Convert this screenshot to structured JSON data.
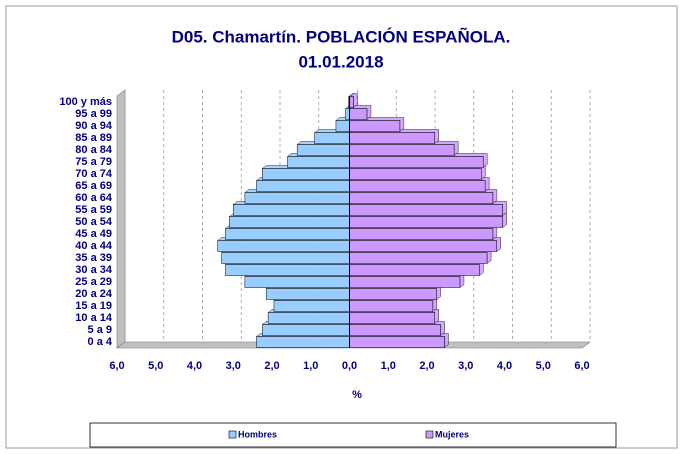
{
  "chart_data": {
    "type": "pyramid",
    "title": "D05. Chamartín. POBLACIÓN ESPAÑOLA.",
    "subtitle": "01.01.2018",
    "x_label": "%",
    "categories": [
      "0 a 4",
      "5 a 9",
      "10 a 14",
      "15 a 19",
      "20 a 24",
      "25 a 29",
      "30 a 34",
      "35 a 39",
      "40 a 44",
      "45 a 49",
      "50 a 54",
      "55 a 59",
      "60 a 64",
      "65 a 69",
      "70 a 74",
      "75 a 79",
      "80 a 84",
      "85 a 89",
      "90 a 94",
      "95 a 99",
      "100 y más"
    ],
    "series": [
      {
        "name": "Hombres",
        "color": "#99ccff",
        "side": "left",
        "values": [
          2.4,
          2.25,
          2.1,
          1.95,
          2.15,
          2.7,
          3.2,
          3.3,
          3.4,
          3.2,
          3.1,
          3.0,
          2.7,
          2.4,
          2.25,
          1.6,
          1.35,
          0.9,
          0.35,
          0.1,
          0.02
        ]
      },
      {
        "name": "Mujeres",
        "color": "#cc99ff",
        "side": "right",
        "values": [
          2.45,
          2.35,
          2.2,
          2.15,
          2.25,
          2.85,
          3.35,
          3.55,
          3.8,
          3.7,
          3.95,
          3.95,
          3.7,
          3.5,
          3.4,
          3.45,
          2.7,
          2.2,
          1.3,
          0.45,
          0.1
        ]
      }
    ],
    "xlim": [
      -6,
      6
    ],
    "xticks": [
      {
        "value": -6,
        "label": "6,0"
      },
      {
        "value": -5,
        "label": "5,0"
      },
      {
        "value": -4,
        "label": "4,0"
      },
      {
        "value": -3,
        "label": "3,0"
      },
      {
        "value": -2,
        "label": "2,0"
      },
      {
        "value": -1,
        "label": "1,0"
      },
      {
        "value": 0,
        "label": "0,0"
      },
      {
        "value": 1,
        "label": "1,0"
      },
      {
        "value": 2,
        "label": "2,0"
      },
      {
        "value": 3,
        "label": "3,0"
      },
      {
        "value": 4,
        "label": "4,0"
      },
      {
        "value": 5,
        "label": "5,0"
      },
      {
        "value": 6,
        "label": "6,0"
      }
    ],
    "grid": true
  }
}
